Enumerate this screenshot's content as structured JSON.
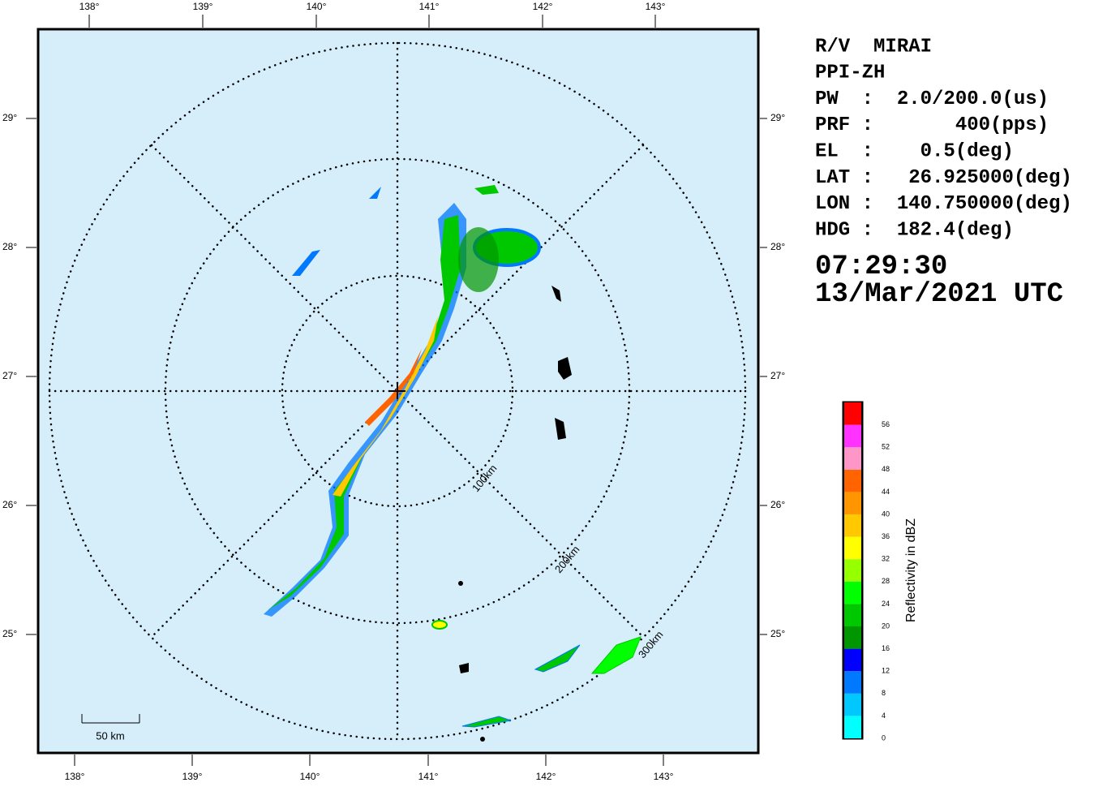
{
  "map": {
    "lon_labels_top": [
      "138°",
      "139°",
      "140°",
      "141°",
      "142°",
      "143°"
    ],
    "lon_labels_bottom": [
      "138°",
      "139°",
      "140°",
      "141°",
      "142°",
      "143°"
    ],
    "lat_labels": [
      "29°",
      "28°",
      "27°",
      "26°",
      "25°"
    ],
    "range_labels": [
      "100km",
      "200km",
      "300km"
    ],
    "scale_label": "50 km"
  },
  "info": {
    "lines": [
      "R/V  MIRAI",
      "PPI-ZH",
      "PW  :  2.0/200.0(us)",
      "PRF :       400(pps)",
      "EL  :    0.5(deg)",
      "LAT :   26.925000(deg)",
      "LON :  140.750000(deg)",
      "HDG :  182.4(deg)"
    ],
    "time": "07:29:30",
    "date": "13/Mar/2021 UTC"
  },
  "colorbar": {
    "title": "Reflectivity in dBZ",
    "ticks": [
      0,
      4,
      8,
      12,
      16,
      20,
      24,
      28,
      32,
      36,
      40,
      44,
      48,
      52,
      56
    ],
    "colors": [
      "#00ffff",
      "#00c8ff",
      "#0078ff",
      "#0000ff",
      "#009600",
      "#00c800",
      "#00ff00",
      "#96ff00",
      "#ffff00",
      "#ffc800",
      "#ff9600",
      "#ff6400",
      "#ff96c8",
      "#ff32ff",
      "#ff0000"
    ]
  }
}
